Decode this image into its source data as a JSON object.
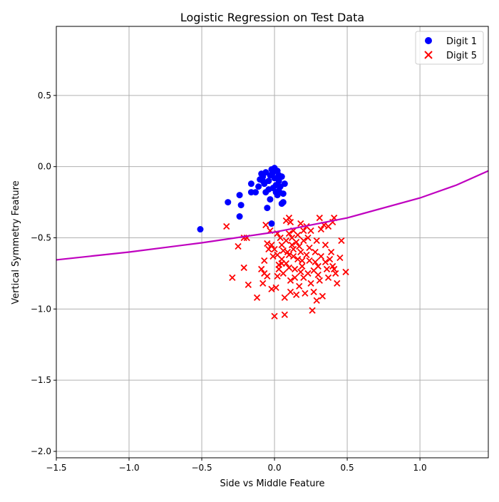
{
  "chart_data": {
    "type": "scatter",
    "title": "Logistic Regression on Test Data",
    "xlabel": "Side vs Middle Feature",
    "ylabel": "Vertical Symmetry Feature",
    "xlim": [
      -1.5,
      1.47
    ],
    "ylim": [
      -2.045,
      0.985
    ],
    "xticks": [
      -1.5,
      -1.0,
      -0.5,
      0.0,
      0.5,
      1.0
    ],
    "xtick_labels": [
      "−1.5",
      "−1.0",
      "−0.5",
      "0.0",
      "0.5",
      "1.0"
    ],
    "yticks": [
      0.5,
      0.0,
      -0.5,
      -1.0,
      -1.5,
      -2.0
    ],
    "ytick_labels": [
      "0.5",
      "0.0",
      "−0.5",
      "−1.0",
      "−1.5",
      "−2.0"
    ],
    "grid": true,
    "legend_placement": "top-right",
    "series": [
      {
        "name": "Digit 1",
        "marker": "circle",
        "color": "#0000ff",
        "points": [
          [
            -0.51,
            -0.44
          ],
          [
            -0.32,
            -0.25
          ],
          [
            -0.24,
            -0.2
          ],
          [
            -0.23,
            -0.27
          ],
          [
            -0.24,
            -0.35
          ],
          [
            -0.16,
            -0.12
          ],
          [
            -0.16,
            -0.18
          ],
          [
            -0.13,
            -0.18
          ],
          [
            -0.11,
            -0.14
          ],
          [
            -0.09,
            -0.05
          ],
          [
            -0.1,
            -0.09
          ],
          [
            -0.08,
            -0.07
          ],
          [
            -0.07,
            -0.12
          ],
          [
            -0.06,
            -0.04
          ],
          [
            -0.06,
            -0.18
          ],
          [
            -0.05,
            -0.29
          ],
          [
            -0.04,
            -0.1
          ],
          [
            -0.03,
            -0.06
          ],
          [
            -0.03,
            -0.23
          ],
          [
            -0.02,
            -0.4
          ],
          [
            -0.02,
            -0.02
          ],
          [
            -0.01,
            -0.04
          ],
          [
            0.0,
            -0.01
          ],
          [
            0.0,
            -0.08
          ],
          [
            0.01,
            -0.13
          ],
          [
            0.01,
            -0.18
          ],
          [
            0.02,
            -0.03
          ],
          [
            0.02,
            -0.2
          ],
          [
            0.03,
            -0.06
          ],
          [
            0.03,
            -0.1
          ],
          [
            0.04,
            -0.14
          ],
          [
            0.05,
            -0.07
          ],
          [
            0.05,
            -0.26
          ],
          [
            0.06,
            -0.19
          ],
          [
            0.06,
            -0.25
          ],
          [
            0.07,
            -0.12
          ],
          [
            -0.04,
            -0.16
          ],
          [
            -0.01,
            -0.15
          ],
          [
            0.03,
            -0.17
          ],
          [
            -0.08,
            -0.1
          ]
        ]
      },
      {
        "name": "Digit 5",
        "marker": "x",
        "color": "#ff0000",
        "points": [
          [
            -0.33,
            -0.42
          ],
          [
            -0.29,
            -0.78
          ],
          [
            -0.25,
            -0.56
          ],
          [
            -0.21,
            -0.5
          ],
          [
            -0.19,
            -0.5
          ],
          [
            -0.21,
            -0.71
          ],
          [
            -0.18,
            -0.83
          ],
          [
            -0.12,
            -0.92
          ],
          [
            -0.09,
            -0.72
          ],
          [
            -0.07,
            -0.66
          ],
          [
            -0.07,
            -0.75
          ],
          [
            -0.08,
            -0.82
          ],
          [
            -0.05,
            -0.77
          ],
          [
            -0.06,
            -0.41
          ],
          [
            -0.05,
            -0.54
          ],
          [
            -0.04,
            -0.58
          ],
          [
            -0.03,
            -0.45
          ],
          [
            -0.02,
            -0.55
          ],
          [
            -0.02,
            -0.86
          ],
          [
            0.0,
            -0.58
          ],
          [
            0.0,
            -1.05
          ],
          [
            0.01,
            -0.85
          ],
          [
            0.02,
            -0.47
          ],
          [
            0.02,
            -0.62
          ],
          [
            0.03,
            -0.69
          ],
          [
            0.03,
            -0.72
          ],
          [
            0.05,
            -0.65
          ],
          [
            0.05,
            -0.55
          ],
          [
            0.06,
            -0.75
          ],
          [
            0.07,
            -0.92
          ],
          [
            0.07,
            -1.04
          ],
          [
            0.08,
            -0.38
          ],
          [
            0.08,
            -0.52
          ],
          [
            0.09,
            -0.6
          ],
          [
            0.1,
            -0.36
          ],
          [
            0.1,
            -0.47
          ],
          [
            0.1,
            -0.62
          ],
          [
            0.1,
            -0.71
          ],
          [
            0.11,
            -0.8
          ],
          [
            0.11,
            -0.88
          ],
          [
            0.12,
            -0.55
          ],
          [
            0.12,
            -0.5
          ],
          [
            0.13,
            -0.45
          ],
          [
            0.13,
            -0.58
          ],
          [
            0.14,
            -0.72
          ],
          [
            0.15,
            -0.9
          ],
          [
            0.15,
            -0.53
          ],
          [
            0.16,
            -0.65
          ],
          [
            0.17,
            -0.84
          ],
          [
            0.17,
            -0.56
          ],
          [
            0.18,
            -0.4
          ],
          [
            0.18,
            -0.6
          ],
          [
            0.19,
            -0.7
          ],
          [
            0.2,
            -0.45
          ],
          [
            0.2,
            -0.52
          ],
          [
            0.2,
            -0.78
          ],
          [
            0.21,
            -0.89
          ],
          [
            0.22,
            -0.42
          ],
          [
            0.22,
            -0.62
          ],
          [
            0.23,
            -0.75
          ],
          [
            0.24,
            -0.66
          ],
          [
            0.25,
            -0.45
          ],
          [
            0.25,
            -0.82
          ],
          [
            0.26,
            -1.01
          ],
          [
            0.27,
            -0.88
          ],
          [
            0.27,
            -0.73
          ],
          [
            0.28,
            -0.6
          ],
          [
            0.29,
            -0.52
          ],
          [
            0.29,
            -0.94
          ],
          [
            0.3,
            -0.7
          ],
          [
            0.31,
            -0.36
          ],
          [
            0.31,
            -0.8
          ],
          [
            0.32,
            -0.44
          ],
          [
            0.32,
            -0.63
          ],
          [
            0.33,
            -0.91
          ],
          [
            0.34,
            -0.41
          ],
          [
            0.35,
            -0.55
          ],
          [
            0.36,
            -0.72
          ],
          [
            0.37,
            -0.78
          ],
          [
            0.38,
            -0.65
          ],
          [
            0.39,
            -0.6
          ],
          [
            0.4,
            -0.39
          ],
          [
            0.41,
            -0.72
          ],
          [
            0.41,
            -0.36
          ],
          [
            0.42,
            -0.75
          ],
          [
            0.43,
            -0.82
          ],
          [
            0.45,
            -0.64
          ],
          [
            0.46,
            -0.52
          ],
          [
            0.49,
            -0.74
          ],
          [
            0.05,
            -0.68
          ],
          [
            0.08,
            -0.68
          ],
          [
            0.13,
            -0.63
          ],
          [
            0.16,
            -0.48
          ],
          [
            0.06,
            -0.59
          ],
          [
            0.02,
            -0.77
          ],
          [
            0.14,
            -0.78
          ],
          [
            0.24,
            -0.57
          ],
          [
            0.19,
            -0.66
          ],
          [
            0.28,
            -0.67
          ],
          [
            0.35,
            -0.67
          ],
          [
            0.4,
            -0.7
          ],
          [
            -0.01,
            -0.63
          ],
          [
            0.04,
            -0.5
          ],
          [
            0.11,
            -0.39
          ],
          [
            0.18,
            -0.74
          ],
          [
            0.23,
            -0.5
          ],
          [
            0.3,
            -0.76
          ],
          [
            0.37,
            -0.42
          ]
        ]
      }
    ],
    "decision_boundary": {
      "type": "line",
      "color": "#bf00bf",
      "points": [
        [
          -1.5,
          -0.655
        ],
        [
          -1.0,
          -0.6
        ],
        [
          -0.5,
          -0.535
        ],
        [
          0.0,
          -0.46
        ],
        [
          0.5,
          -0.36
        ],
        [
          1.0,
          -0.22
        ],
        [
          1.25,
          -0.13
        ],
        [
          1.47,
          -0.03
        ]
      ]
    }
  }
}
